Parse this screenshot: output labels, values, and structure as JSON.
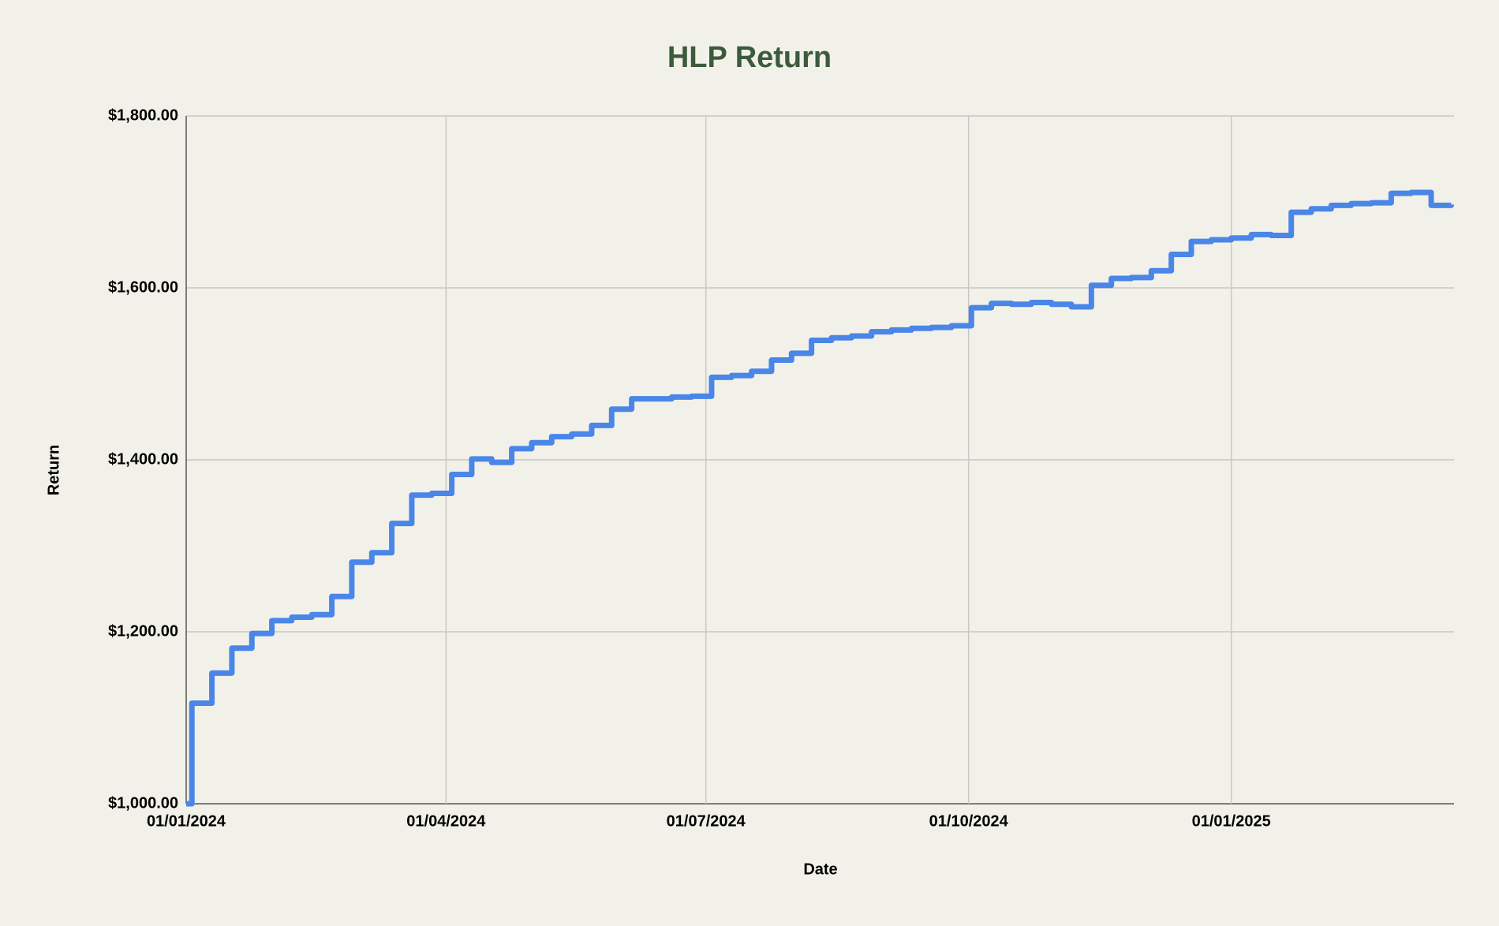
{
  "chart_data": {
    "type": "line",
    "title": "HLP Return",
    "x_label": "Date",
    "y_label": "Return",
    "x": [
      "01/01/2024",
      "03/01/2024",
      "10/01/2024",
      "17/01/2024",
      "24/01/2024",
      "31/01/2024",
      "07/02/2024",
      "14/02/2024",
      "21/02/2024",
      "28/02/2024",
      "06/03/2024",
      "13/03/2024",
      "20/03/2024",
      "27/03/2024",
      "03/04/2024",
      "10/04/2024",
      "17/04/2024",
      "24/04/2024",
      "01/05/2024",
      "08/05/2024",
      "15/05/2024",
      "22/05/2024",
      "29/05/2024",
      "05/06/2024",
      "12/06/2024",
      "19/06/2024",
      "26/06/2024",
      "03/07/2024",
      "10/07/2024",
      "17/07/2024",
      "24/07/2024",
      "31/07/2024",
      "07/08/2024",
      "14/08/2024",
      "21/08/2024",
      "28/08/2024",
      "04/09/2024",
      "11/09/2024",
      "18/09/2024",
      "25/09/2024",
      "02/10/2024",
      "09/10/2024",
      "16/10/2024",
      "23/10/2024",
      "30/10/2024",
      "06/11/2024",
      "13/11/2024",
      "20/11/2024",
      "27/11/2024",
      "04/12/2024",
      "11/12/2024",
      "18/12/2024",
      "25/12/2024",
      "01/01/2025",
      "08/01/2025",
      "15/01/2025",
      "22/01/2025",
      "29/01/2025",
      "05/02/2025",
      "12/02/2025",
      "19/02/2025",
      "26/02/2025",
      "05/03/2025",
      "12/03/2025",
      "19/03/2025"
    ],
    "series": [
      {
        "name": "Return",
        "color": "#4a86e8",
        "values": [
          1000,
          1117,
          1152,
          1181,
          1198,
          1213,
          1217,
          1220,
          1241,
          1281,
          1292,
          1326,
          1359,
          1361,
          1383,
          1401,
          1397,
          1413,
          1420,
          1427,
          1430,
          1440,
          1459,
          1471,
          1471,
          1473,
          1474,
          1496,
          1498,
          1503,
          1516,
          1524,
          1539,
          1542,
          1544,
          1549,
          1551,
          1553,
          1554,
          1556,
          1577,
          1582,
          1581,
          1583,
          1581,
          1578,
          1603,
          1611,
          1612,
          1620,
          1639,
          1654,
          1656,
          1658,
          1662,
          1661,
          1688,
          1692,
          1696,
          1698,
          1699,
          1710,
          1711,
          1696,
          1697
        ]
      }
    ],
    "xlim": [
      "01/01/2024",
      "20/03/2025"
    ],
    "xticks": [
      "01/01/2024",
      "01/04/2024",
      "01/07/2024",
      "01/10/2024",
      "01/01/2025"
    ],
    "ylim": [
      1000,
      1800
    ],
    "yticks": [
      {
        "value": 1000,
        "label": "$1,000.00"
      },
      {
        "value": 1200,
        "label": "$1,200.00"
      },
      {
        "value": 1400,
        "label": "$1,400.00"
      },
      {
        "value": 1600,
        "label": "$1,600.00"
      },
      {
        "value": 1800,
        "label": "$1,800.00"
      }
    ],
    "grid": true,
    "step": true
  }
}
